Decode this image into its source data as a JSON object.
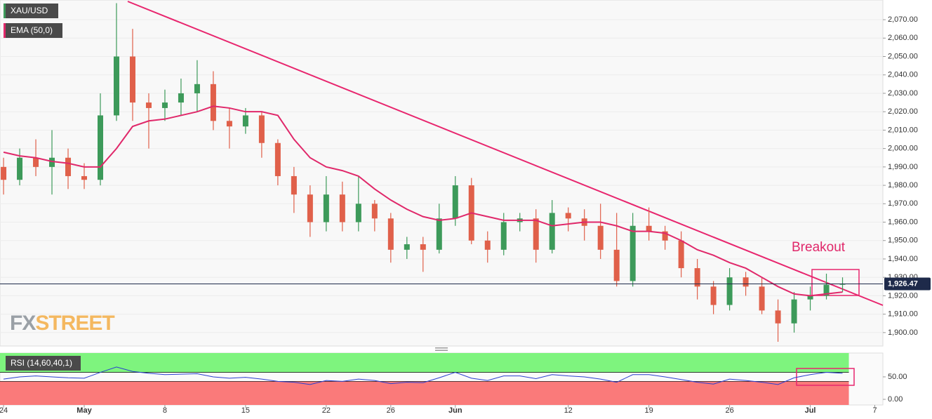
{
  "chart_data": [
    {
      "type": "candlestick",
      "series": [
        {
          "name": "XAU/USD",
          "up_color": "#3d9a5a",
          "down_color": "#e0604a",
          "open": [
            1990,
            1983,
            1995,
            1990,
            1995,
            1985,
            1983,
            2018,
            2050,
            2025,
            2022,
            2025,
            2030,
            2035,
            2015,
            2012,
            2018,
            2003,
            1985,
            1975,
            1960,
            1975,
            1960,
            1970,
            1962,
            1945,
            1948,
            1945,
            1962,
            1980,
            1950,
            1945,
            1960,
            1962,
            1945,
            1965,
            1962,
            1958,
            1945,
            1928,
            1958,
            1955,
            1950,
            1935,
            1925,
            1915,
            1930,
            1925,
            1912,
            1905,
            1918,
            1920,
            1926
          ],
          "high": [
            1995,
            2000,
            2005,
            2010,
            2000,
            1992,
            2030,
            2079,
            2065,
            2030,
            2032,
            2038,
            2048,
            2042,
            2022,
            2022,
            2020,
            2005,
            1990,
            1980,
            1985,
            1982,
            1985,
            1972,
            1965,
            1952,
            1952,
            1970,
            1985,
            1984,
            1955,
            1965,
            1965,
            1967,
            1972,
            1968,
            1967,
            1970,
            1965,
            1965,
            1968,
            1958,
            1955,
            1940,
            1928,
            1935,
            1933,
            1930,
            1918,
            1922,
            1925,
            1932,
            1930
          ],
          "low": [
            1975,
            1980,
            1985,
            1975,
            1978,
            1978,
            1980,
            2015,
            2015,
            2000,
            2015,
            2018,
            2020,
            2010,
            2000,
            2008,
            1995,
            1980,
            1965,
            1952,
            1955,
            1955,
            1955,
            1955,
            1938,
            1940,
            1933,
            1943,
            1958,
            1948,
            1938,
            1942,
            1955,
            1938,
            1943,
            1955,
            1950,
            1940,
            1925,
            1925,
            1950,
            1945,
            1930,
            1918,
            1910,
            1912,
            1920,
            1910,
            1895,
            1900,
            1912,
            1918,
            1922
          ],
          "close": [
            1983,
            1995,
            1990,
            1995,
            1985,
            1983,
            2018,
            2050,
            2025,
            2022,
            2025,
            2030,
            2035,
            2015,
            2012,
            2018,
            2003,
            1985,
            1975,
            1960,
            1975,
            1960,
            1970,
            1962,
            1945,
            1948,
            1945,
            1962,
            1980,
            1950,
            1945,
            1960,
            1962,
            1945,
            1965,
            1962,
            1958,
            1945,
            1928,
            1958,
            1955,
            1950,
            1935,
            1925,
            1915,
            1930,
            1925,
            1912,
            1905,
            1918,
            1920,
            1926,
            1926.47
          ]
        },
        {
          "name": "EMA (50,0)",
          "color": "#e0286a",
          "values": [
            1998,
            1996,
            1995,
            1993,
            1992,
            1990,
            1990,
            2000,
            2012,
            2015,
            2016,
            2018,
            2020,
            2023,
            2022,
            2020,
            2020,
            2018,
            2005,
            1995,
            1990,
            1988,
            1985,
            1978,
            1972,
            1967,
            1963,
            1961,
            1962,
            1965,
            1963,
            1961,
            1961,
            1961,
            1958,
            1959,
            1960,
            1960,
            1958,
            1955,
            1955,
            1954,
            1950,
            1945,
            1942,
            1938,
            1935,
            1930,
            1925,
            1921,
            1920,
            1921,
            1922
          ]
        }
      ],
      "current_price": {
        "value": 1926.47,
        "label": "1,926.47"
      },
      "annotation": "Breakout",
      "logo": [
        "FX",
        "STREET"
      ],
      "xlim": [
        -0.22,
        54.5
      ],
      "ylim": [
        1892.7,
        2080.7
      ],
      "yticks": [
        {
          "value": 1900,
          "label": "1,900.00"
        },
        {
          "value": 1910,
          "label": "1,910.00"
        },
        {
          "value": 1920,
          "label": "1,920.00"
        },
        {
          "value": 1930,
          "label": "1,930.00"
        },
        {
          "value": 1940,
          "label": "1,940.00"
        },
        {
          "value": 1950,
          "label": "1,950.00"
        },
        {
          "value": 1960,
          "label": "1,960.00"
        },
        {
          "value": 1970,
          "label": "1,970.00"
        },
        {
          "value": 1980,
          "label": "1,980.00"
        },
        {
          "value": 1990,
          "label": "1,990.00"
        },
        {
          "value": 2000,
          "label": "2,000.00"
        },
        {
          "value": 2010,
          "label": "2,010.00"
        },
        {
          "value": 2020,
          "label": "2,020.00"
        },
        {
          "value": 2030,
          "label": "2,030.00"
        },
        {
          "value": 2040,
          "label": "2,040.00"
        },
        {
          "value": 2050,
          "label": "2,050.00"
        },
        {
          "value": 2060,
          "label": "2,060.00"
        },
        {
          "value": 2070,
          "label": "2,070.00"
        }
      ],
      "grid": true
    },
    {
      "type": "line",
      "series": [
        {
          "name": "RSI (14,60,40,1)",
          "color": "#2a3fd0",
          "values": [
            45,
            50,
            52,
            50,
            48,
            47,
            60,
            72,
            62,
            58,
            55,
            56,
            57,
            50,
            47,
            49,
            45,
            40,
            38,
            33,
            42,
            40,
            45,
            42,
            35,
            38,
            37,
            48,
            60,
            47,
            42,
            52,
            52,
            46,
            55,
            52,
            50,
            45,
            38,
            55,
            55,
            50,
            44,
            38,
            34,
            45,
            42,
            38,
            33,
            48,
            55,
            60,
            58
          ]
        }
      ],
      "bands": {
        "upper": 60,
        "lower": 40,
        "upper_color": "#7ef47e",
        "lower_color": "#fa7a7a"
      },
      "xlim": [
        -0.22,
        54.5
      ],
      "ylim": [
        -12.5,
        103
      ],
      "yticks": [
        {
          "value": 50,
          "label": "50.00"
        },
        {
          "value": 0,
          "label": "0.00"
        }
      ],
      "xticks": [
        {
          "value": 0,
          "label": "24"
        },
        {
          "value": 5,
          "label": "May"
        },
        {
          "value": 10,
          "label": "8"
        },
        {
          "value": 15,
          "label": "15"
        },
        {
          "value": 20,
          "label": "22"
        },
        {
          "value": 24,
          "label": "26"
        },
        {
          "value": 28,
          "label": "Jun"
        },
        {
          "value": 35,
          "label": "12"
        },
        {
          "value": 40,
          "label": "19"
        },
        {
          "value": 45,
          "label": "26"
        },
        {
          "value": 50,
          "label": "Jul"
        },
        {
          "value": 54,
          "label": "7"
        }
      ]
    }
  ]
}
